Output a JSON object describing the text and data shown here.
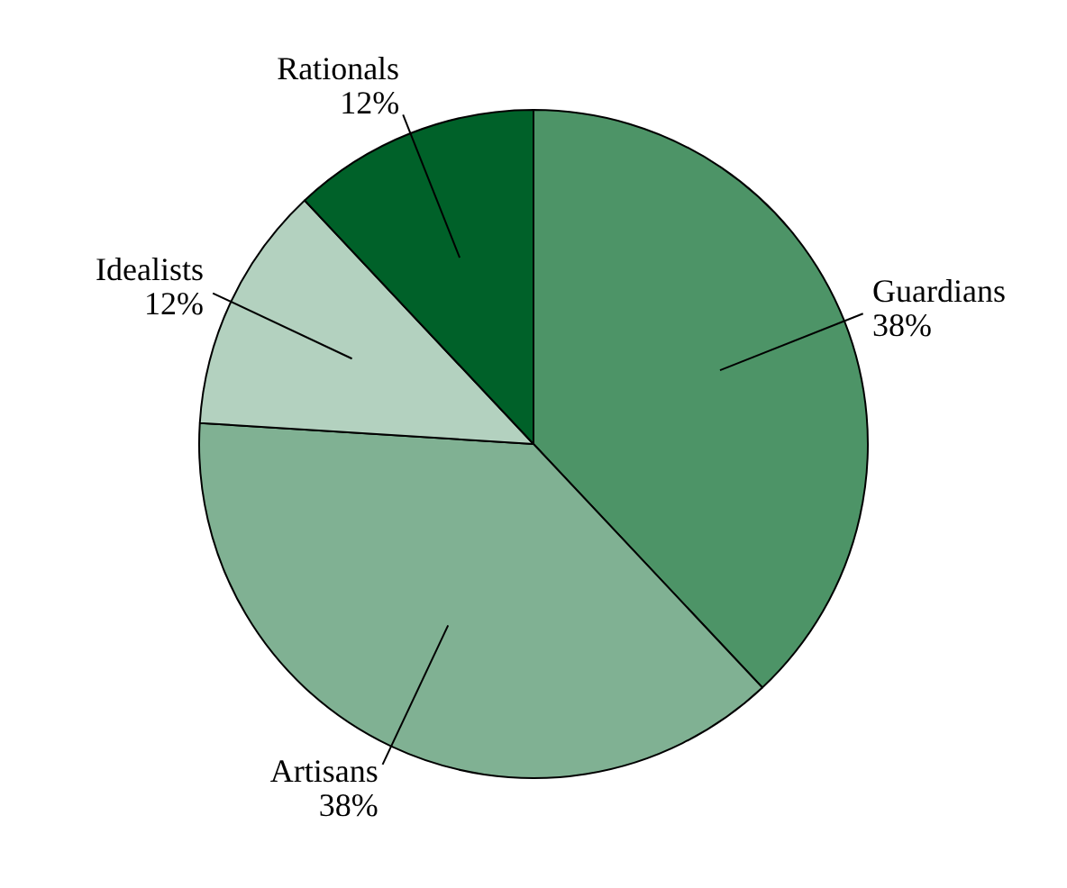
{
  "chart_data": {
    "type": "pie",
    "categories": [
      "Guardians",
      "Artisans",
      "Idealists",
      "Rationals"
    ],
    "values": [
      38,
      38,
      12,
      12
    ],
    "value_labels": [
      "38%",
      "38%",
      "12%",
      "12%"
    ],
    "colors": [
      "#4d9467",
      "#80b193",
      "#b3d1bf",
      "#006129"
    ],
    "legend": false
  }
}
